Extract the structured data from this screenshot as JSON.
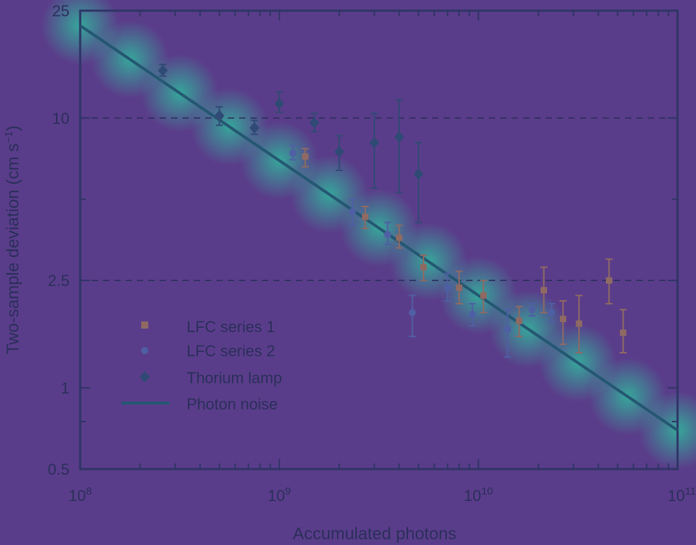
{
  "chart_data": {
    "type": "scatter",
    "title": "",
    "xlabel": "Accumulated photons",
    "ylabel": "Two-sample deviation (cm s",
    "ylabel_sup": "−1",
    "ylabel_end": ")",
    "xscale": "log",
    "yscale": "log",
    "xlim": [
      100000000,
      100000000000
    ],
    "ylim": [
      0.5,
      25
    ],
    "x_tick_labels": [
      {
        "mantissa": "10",
        "exp": "8",
        "value": 100000000
      },
      {
        "mantissa": "10",
        "exp": "9",
        "value": 1000000000
      },
      {
        "mantissa": "10",
        "exp": "10",
        "value": 10000000000
      },
      {
        "mantissa": "10",
        "exp": "11",
        "value": 100000000000
      }
    ],
    "y_tick_labels": [
      {
        "label": "0.5",
        "value": 0.5
      },
      {
        "label": "1",
        "value": 1
      },
      {
        "label": "2.5",
        "value": 2.5
      },
      {
        "label": "10",
        "value": 10
      },
      {
        "label": "25",
        "value": 25
      }
    ],
    "reference_lines": [
      2.5,
      10
    ],
    "legend_position": "lower-left",
    "colors": {
      "lfc1": "#8f6a63",
      "lfc2": "#4f5fa4",
      "thorium": "#2f4a74",
      "photon": "#245772",
      "axis": "#2e3566",
      "dashed": "#2a2f5a"
    },
    "series": [
      {
        "name": "LFC series 1",
        "marker": "square",
        "points": [
          {
            "x": 1350000000,
            "y": 7.2,
            "lo": 6.6,
            "hi": 7.7
          },
          {
            "x": 2700000000,
            "y": 4.3,
            "lo": 3.9,
            "hi": 4.7
          },
          {
            "x": 4000000000,
            "y": 3.6,
            "lo": 3.3,
            "hi": 4.0
          },
          {
            "x": 5300000000,
            "y": 2.8,
            "lo": 2.5,
            "hi": 3.1
          },
          {
            "x": 8000000000,
            "y": 2.35,
            "lo": 2.05,
            "hi": 2.7
          },
          {
            "x": 10600000000,
            "y": 2.2,
            "lo": 1.9,
            "hi": 2.5
          },
          {
            "x": 16000000000,
            "y": 1.77,
            "lo": 1.55,
            "hi": 2.0
          },
          {
            "x": 21300000000,
            "y": 2.3,
            "lo": 1.9,
            "hi": 2.8
          },
          {
            "x": 26600000000,
            "y": 1.8,
            "lo": 1.45,
            "hi": 2.1
          },
          {
            "x": 32000000000,
            "y": 1.73,
            "lo": 1.35,
            "hi": 2.2
          },
          {
            "x": 45300000000,
            "y": 2.5,
            "lo": 2.05,
            "hi": 3.0
          },
          {
            "x": 53300000000,
            "y": 1.6,
            "lo": 1.35,
            "hi": 1.95
          }
        ]
      },
      {
        "name": "LFC series 2",
        "marker": "circle",
        "points": [
          {
            "x": 1170000000,
            "y": 7.4,
            "lo": 7.0,
            "hi": 7.9
          },
          {
            "x": 2330000000,
            "y": 4.5,
            "lo": 4.0,
            "hi": 5.0
          },
          {
            "x": 3500000000,
            "y": 3.7,
            "lo": 3.4,
            "hi": 4.1
          },
          {
            "x": 4660000000,
            "y": 1.9,
            "lo": 1.55,
            "hi": 2.2
          },
          {
            "x": 7000000000,
            "y": 2.35,
            "lo": 2.1,
            "hi": 2.65
          },
          {
            "x": 9330000000,
            "y": 1.87,
            "lo": 1.7,
            "hi": 2.05
          },
          {
            "x": 14000000000,
            "y": 1.65,
            "lo": 1.3,
            "hi": 1.95
          },
          {
            "x": 18600000000,
            "y": 1.95,
            "lo": 1.85,
            "hi": 2.05
          },
          {
            "x": 23300000000,
            "y": 1.9,
            "lo": 1.75,
            "hi": 2.05
          }
        ]
      },
      {
        "name": "Thorium lamp",
        "marker": "diamond",
        "points": [
          {
            "x": 260000000,
            "y": 15.0,
            "lo": 14.3,
            "hi": 15.8
          },
          {
            "x": 500000000,
            "y": 10.2,
            "lo": 9.4,
            "hi": 11.0
          },
          {
            "x": 750000000,
            "y": 9.2,
            "lo": 8.7,
            "hi": 9.8
          },
          {
            "x": 1000000000,
            "y": 11.3,
            "lo": 10.5,
            "hi": 12.5
          },
          {
            "x": 1500000000,
            "y": 9.6,
            "lo": 8.9,
            "hi": 10.4
          },
          {
            "x": 2000000000,
            "y": 7.5,
            "lo": 6.4,
            "hi": 8.6
          },
          {
            "x": 3000000000,
            "y": 8.1,
            "lo": 5.5,
            "hi": 10.4
          },
          {
            "x": 4000000000,
            "y": 8.5,
            "lo": 5.3,
            "hi": 11.7
          },
          {
            "x": 5000000000,
            "y": 6.2,
            "lo": 4.1,
            "hi": 8.1
          }
        ]
      },
      {
        "name": "Photon noise",
        "marker": "line",
        "points": [
          {
            "x": 100000000,
            "y": 22.0
          },
          {
            "x": 100000000000,
            "y": 0.696
          }
        ]
      }
    ]
  }
}
